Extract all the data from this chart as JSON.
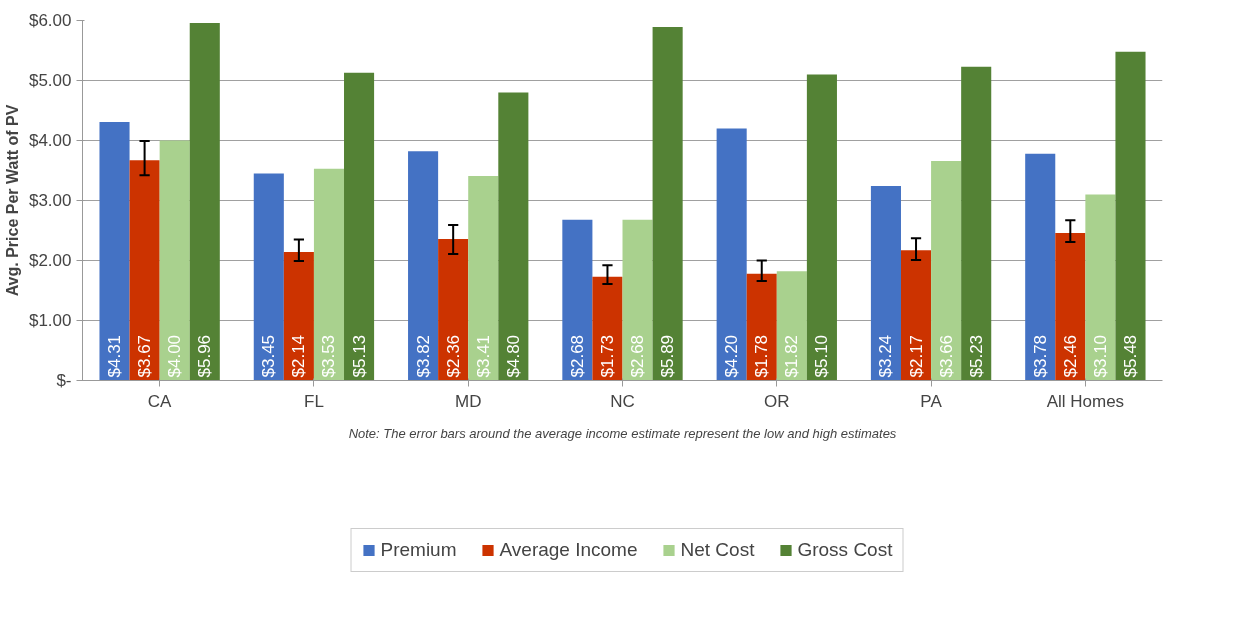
{
  "chart_data": {
    "type": "bar",
    "ylabel": "Avg. Price Per Watt of PV",
    "categories": [
      "CA",
      "FL",
      "MD",
      "NC",
      "OR",
      "PA",
      "All Homes"
    ],
    "series": [
      {
        "name": "Premium",
        "color": "#4472c4",
        "values": [
          4.31,
          3.45,
          3.82,
          2.68,
          4.2,
          3.24,
          3.78
        ],
        "value_labels": [
          "$4.31",
          "$3.45",
          "$3.82",
          "$2.68",
          "$4.20",
          "$3.24",
          "$3.78"
        ]
      },
      {
        "name": "Average Income",
        "color": "#cc3300",
        "values": [
          3.67,
          2.14,
          2.36,
          1.73,
          1.78,
          2.17,
          2.46
        ],
        "value_labels": [
          "$3.67",
          "$2.14",
          "$2.36",
          "$1.73",
          "$1.78",
          "$2.17",
          "$2.46"
        ],
        "errors": [
          [
            3.42,
            3.99
          ],
          [
            1.99,
            2.35
          ],
          [
            2.11,
            2.59
          ],
          [
            1.61,
            1.92
          ],
          [
            1.66,
            2.0
          ],
          [
            2.01,
            2.37
          ],
          [
            2.31,
            2.67
          ]
        ]
      },
      {
        "name": "Net Cost",
        "color": "#a9d18e",
        "values": [
          4.0,
          3.53,
          3.41,
          2.68,
          1.82,
          3.66,
          3.1
        ],
        "value_labels": [
          "$4.00",
          "$3.53",
          "$3.41",
          "$2.68",
          "$1.82",
          "$3.66",
          "$3.10"
        ]
      },
      {
        "name": "Gross Cost",
        "color": "#548235",
        "values": [
          5.96,
          5.13,
          4.8,
          5.89,
          5.1,
          5.23,
          5.48
        ],
        "value_labels": [
          "$5.96",
          "$5.13",
          "$4.80",
          "$5.89",
          "$5.10",
          "$5.23",
          "$5.48"
        ]
      }
    ],
    "ylim": [
      0,
      6
    ],
    "yticks": [
      {
        "value": 0,
        "label": "$-"
      },
      {
        "value": 1,
        "label": "$1.00"
      },
      {
        "value": 2,
        "label": "$2.00"
      },
      {
        "value": 3,
        "label": "$3.00"
      },
      {
        "value": 4,
        "label": "$4.00"
      },
      {
        "value": 5,
        "label": "$5.00"
      },
      {
        "value": 6,
        "label": "$6.00"
      }
    ],
    "grid": "y",
    "legend": "bottom",
    "annotations": [
      "Note: The error bars around the average income estimate represent the low and high estimates"
    ]
  }
}
